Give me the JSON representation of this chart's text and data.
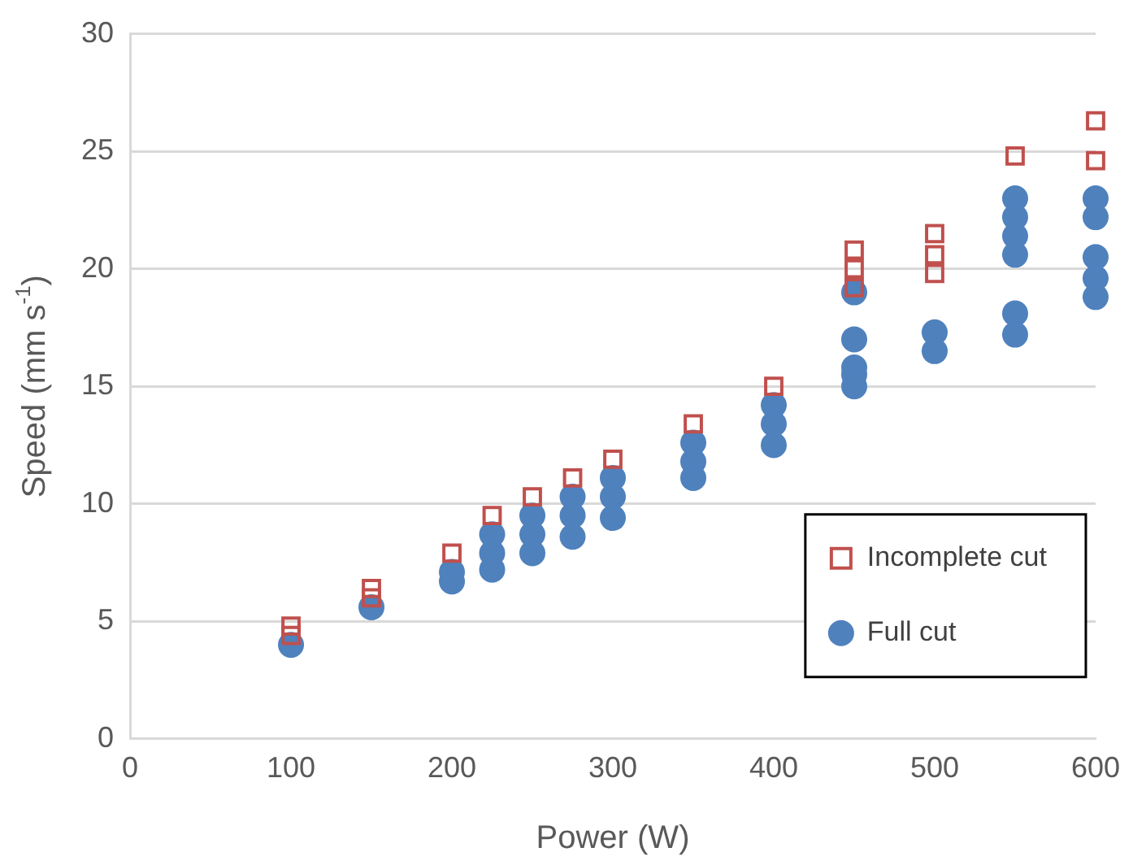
{
  "chart_data": {
    "type": "scatter",
    "xlabel": "Power (W)",
    "ylabel": "Speed (mm s$^{-1}$)",
    "xlim": [
      0,
      600
    ],
    "xticks": [
      0,
      100,
      200,
      300,
      400,
      500,
      600
    ],
    "ylim": [
      0,
      30
    ],
    "yticks": [
      0,
      5,
      10,
      15,
      20,
      25,
      30
    ],
    "grid": "y",
    "legend": "bottom right",
    "series": [
      {
        "name": "Incomplete cut",
        "color": "#c0504d",
        "marker": "square",
        "x": [
          100,
          100,
          150,
          150,
          200,
          225,
          250,
          275,
          300,
          350,
          400,
          450,
          450,
          450,
          500,
          500,
          500,
          550,
          600,
          600
        ],
        "values": [
          4.8,
          4.4,
          6.4,
          6.0,
          7.9,
          9.5,
          10.3,
          11.1,
          11.9,
          13.4,
          15.0,
          20.8,
          20.0,
          19.2,
          21.5,
          20.6,
          19.8,
          24.8,
          26.3,
          24.6
        ]
      },
      {
        "name": "Full cut",
        "color": "#4f81bd",
        "marker": "circle",
        "x": [
          100,
          150,
          200,
          200,
          225,
          225,
          225,
          250,
          250,
          250,
          275,
          275,
          275,
          300,
          300,
          300,
          350,
          350,
          350,
          400,
          400,
          400,
          450,
          450,
          450,
          450,
          450,
          500,
          500,
          550,
          550,
          550,
          550,
          550,
          550,
          600,
          600,
          600,
          600,
          600
        ],
        "values": [
          4.0,
          5.6,
          7.1,
          6.7,
          8.7,
          7.9,
          7.2,
          9.5,
          8.7,
          7.9,
          10.3,
          9.5,
          8.6,
          11.1,
          10.3,
          9.4,
          12.6,
          11.8,
          11.1,
          14.2,
          13.4,
          12.5,
          19.0,
          17.0,
          15.8,
          15.5,
          15.0,
          17.3,
          16.5,
          23.0,
          22.2,
          21.4,
          20.6,
          18.1,
          17.2,
          23.0,
          22.2,
          20.5,
          19.6,
          18.8
        ]
      }
    ]
  }
}
